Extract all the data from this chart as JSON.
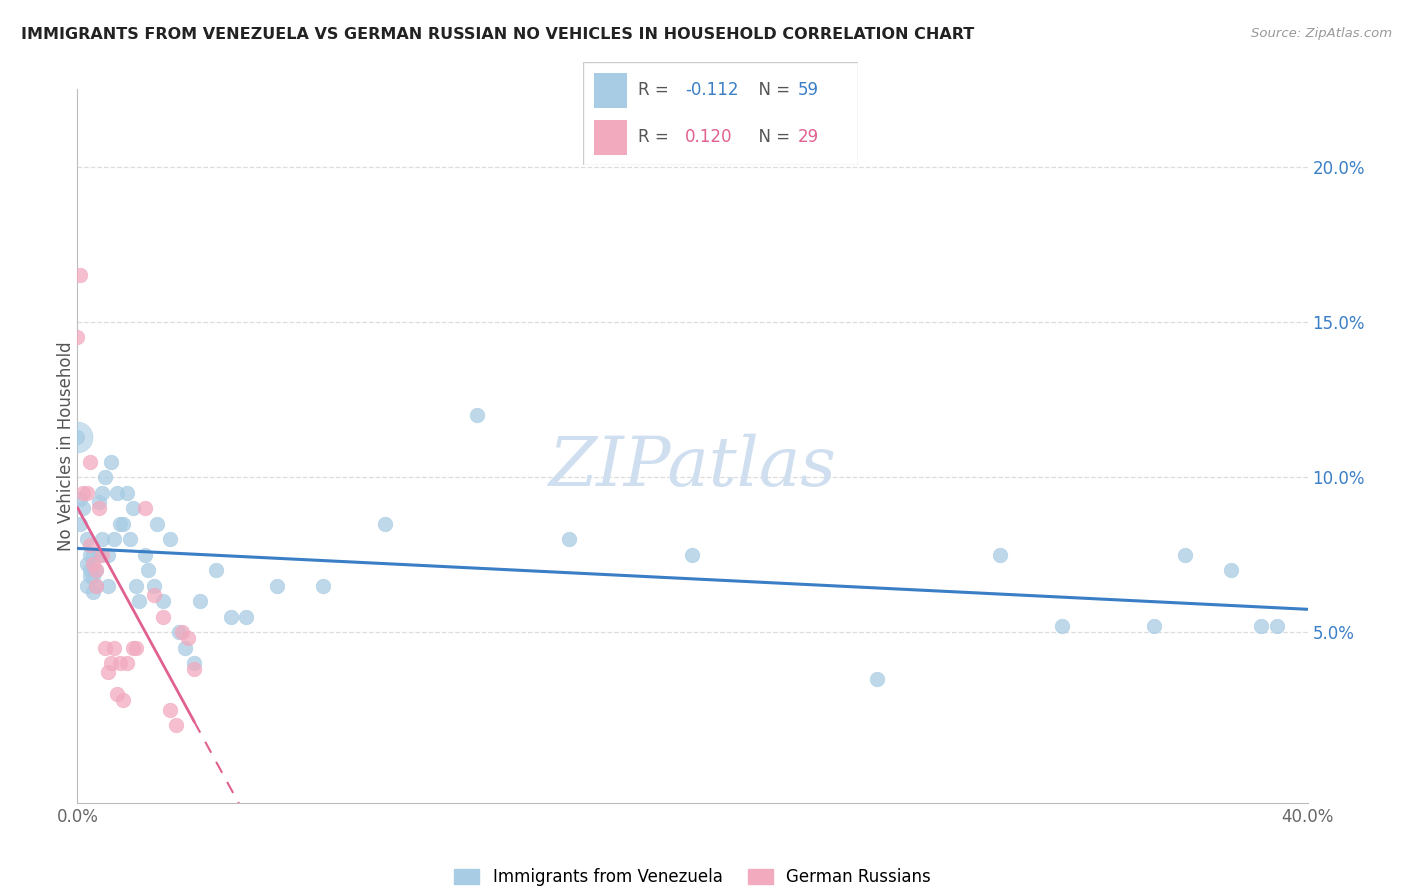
{
  "title": "IMMIGRANTS FROM VENEZUELA VS GERMAN RUSSIAN NO VEHICLES IN HOUSEHOLD CORRELATION CHART",
  "source": "Source: ZipAtlas.com",
  "ylabel": "No Vehicles in Household",
  "xlim": [
    0.0,
    0.4
  ],
  "ylim": [
    -0.005,
    0.225
  ],
  "legend1_label": "Immigrants from Venezuela",
  "legend2_label": "German Russians",
  "R1_text": "-0.112",
  "N1_text": "59",
  "R2_text": "0.120",
  "N2_text": "29",
  "color_blue": "#A8CCE4",
  "color_pink": "#F2AABF",
  "trendline_blue": "#3A7EC6",
  "trendline_pink": "#E06090",
  "watermark_text": "ZIPatlas",
  "watermark_color": "#D0DFF0",
  "grid_color": "#DDDDDD",
  "blue_x": [
    0.0,
    0.001,
    0.001,
    0.002,
    0.003,
    0.003,
    0.003,
    0.004,
    0.004,
    0.004,
    0.005,
    0.005,
    0.005,
    0.006,
    0.006,
    0.007,
    0.007,
    0.008,
    0.008,
    0.009,
    0.01,
    0.01,
    0.011,
    0.012,
    0.013,
    0.014,
    0.015,
    0.016,
    0.017,
    0.018,
    0.019,
    0.02,
    0.022,
    0.023,
    0.025,
    0.026,
    0.028,
    0.03,
    0.033,
    0.035,
    0.038,
    0.04,
    0.045,
    0.05,
    0.055,
    0.065,
    0.08,
    0.1,
    0.13,
    0.16,
    0.2,
    0.26,
    0.3,
    0.32,
    0.35,
    0.36,
    0.375,
    0.385,
    0.39
  ],
  "blue_y": [
    0.113,
    0.085,
    0.093,
    0.09,
    0.08,
    0.072,
    0.065,
    0.07,
    0.075,
    0.068,
    0.075,
    0.068,
    0.063,
    0.07,
    0.065,
    0.092,
    0.075,
    0.095,
    0.08,
    0.1,
    0.075,
    0.065,
    0.105,
    0.08,
    0.095,
    0.085,
    0.085,
    0.095,
    0.08,
    0.09,
    0.065,
    0.06,
    0.075,
    0.07,
    0.065,
    0.085,
    0.06,
    0.08,
    0.05,
    0.045,
    0.04,
    0.06,
    0.07,
    0.055,
    0.055,
    0.065,
    0.065,
    0.085,
    0.12,
    0.08,
    0.075,
    0.035,
    0.075,
    0.052,
    0.052,
    0.075,
    0.07,
    0.052,
    0.052
  ],
  "blue_size": [
    200,
    100,
    100,
    100,
    100,
    100,
    100,
    100,
    100,
    100,
    100,
    100,
    100,
    100,
    100,
    100,
    100,
    100,
    100,
    100,
    100,
    100,
    100,
    100,
    100,
    100,
    100,
    100,
    100,
    100,
    100,
    100,
    100,
    100,
    100,
    100,
    100,
    100,
    100,
    100,
    100,
    100,
    100,
    100,
    100,
    100,
    100,
    100,
    100,
    100,
    100,
    100,
    100,
    100,
    100,
    100,
    100,
    100,
    100
  ],
  "pink_x": [
    0.0,
    0.001,
    0.002,
    0.003,
    0.004,
    0.004,
    0.005,
    0.006,
    0.006,
    0.007,
    0.008,
    0.009,
    0.01,
    0.011,
    0.012,
    0.013,
    0.014,
    0.015,
    0.016,
    0.018,
    0.019,
    0.022,
    0.025,
    0.028,
    0.03,
    0.032,
    0.034,
    0.036,
    0.038
  ],
  "pink_y": [
    0.145,
    0.165,
    0.095,
    0.095,
    0.105,
    0.078,
    0.072,
    0.065,
    0.07,
    0.09,
    0.075,
    0.045,
    0.037,
    0.04,
    0.045,
    0.03,
    0.04,
    0.028,
    0.04,
    0.045,
    0.045,
    0.09,
    0.062,
    0.055,
    0.025,
    0.02,
    0.05,
    0.048,
    0.038
  ]
}
